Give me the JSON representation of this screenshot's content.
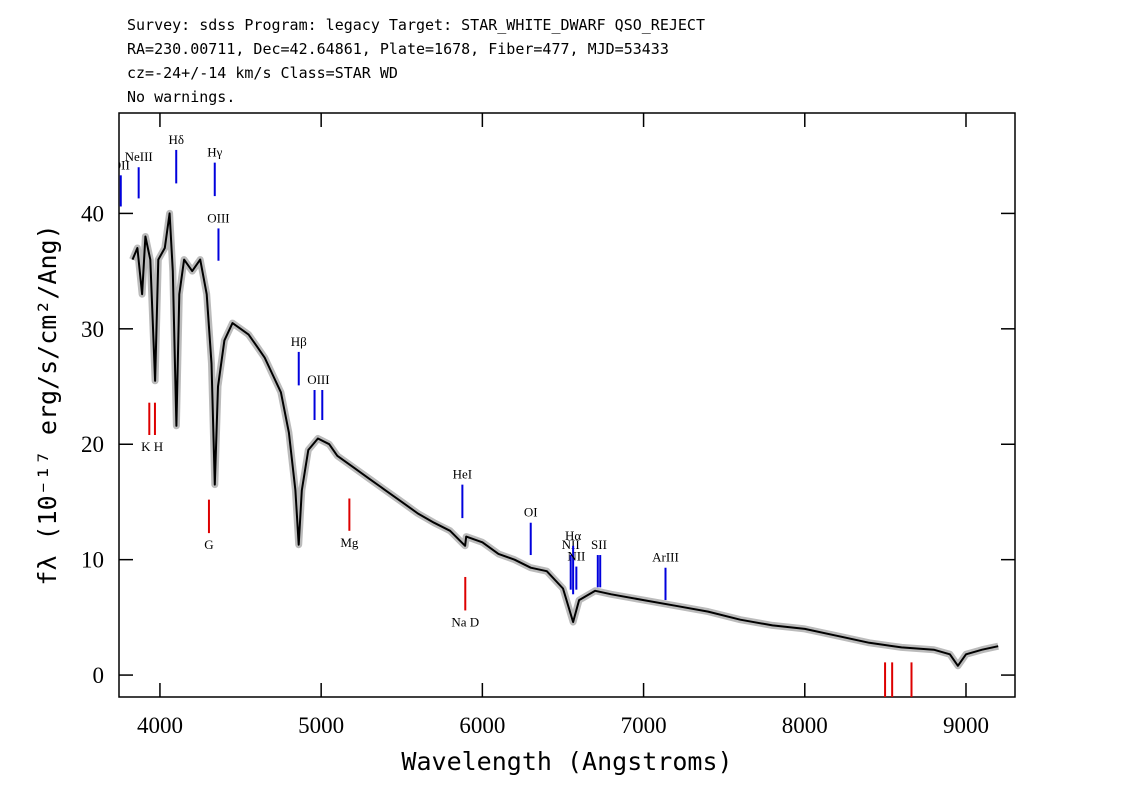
{
  "chart_data": {
    "type": "line",
    "title_lines": [
      "Survey: sdss Program: legacy Target: STAR_WHITE_DWARF QSO_REJECT",
      "RA=230.00711, Dec=42.64861, Plate=1678, Fiber=477, MJD=53433",
      "cz=-24+/-14 km/s Class=STAR WD",
      "No warnings."
    ],
    "xlabel": "Wavelength (Angstroms)",
    "ylabel": "fλ (10⁻¹⁷ erg/s/cm²/Ang)",
    "xlim": [
      3746,
      9304
    ],
    "ylim": [
      -1.9,
      48.7
    ],
    "xticks": [
      4000,
      5000,
      6000,
      7000,
      8000,
      9000
    ],
    "yticks": [
      0,
      10,
      20,
      30,
      40
    ],
    "color": "#000000",
    "error_color": "#bbbbbb",
    "x": [
      3830,
      3860,
      3889,
      3910,
      3940,
      3970,
      3990,
      4030,
      4060,
      4080,
      4102,
      4120,
      4150,
      4200,
      4250,
      4290,
      4320,
      4340,
      4360,
      4400,
      4450,
      4500,
      4550,
      4600,
      4650,
      4700,
      4750,
      4800,
      4840,
      4861,
      4880,
      4920,
      4980,
      5050,
      5100,
      5200,
      5300,
      5400,
      5500,
      5600,
      5700,
      5800,
      5893,
      5900,
      6000,
      6100,
      6200,
      6300,
      6400,
      6500,
      6563,
      6600,
      6700,
      6800,
      7000,
      7200,
      7400,
      7600,
      7800,
      8000,
      8200,
      8400,
      8600,
      8800,
      8900,
      8950,
      9000,
      9100,
      9200
    ],
    "values": [
      36,
      37,
      33,
      38,
      36,
      25.5,
      36,
      37,
      40,
      35,
      21.6,
      33,
      36,
      35,
      36,
      33,
      27,
      16.5,
      25,
      29,
      30.5,
      30,
      29.5,
      28.5,
      27.5,
      26,
      24.5,
      21,
      16,
      11.3,
      16,
      19.5,
      20.5,
      20,
      19,
      18,
      17,
      16,
      15,
      14,
      13.2,
      12.5,
      11.2,
      12,
      11.5,
      10.5,
      10,
      9.3,
      9,
      7.5,
      4.6,
      6.5,
      7.3,
      7,
      6.5,
      6,
      5.5,
      4.8,
      4.3,
      4,
      3.4,
      2.8,
      2.4,
      2.2,
      1.8,
      0.8,
      1.8,
      2.2,
      2.5
    ],
    "line_markers": [
      {
        "label": "OII",
        "wavelength": [
          3757
        ],
        "flux_range": [
          40.6,
          43.3
        ],
        "color": "#0000dd"
      },
      {
        "label": "NeIII",
        "wavelength": [
          3868
        ],
        "flux_range": [
          41.3,
          44.0
        ],
        "color": "#0000dd"
      },
      {
        "label": "Hδ",
        "wavelength": [
          4101
        ],
        "flux_range": [
          42.6,
          45.5
        ],
        "color": "#0000dd"
      },
      {
        "label": "Hγ",
        "wavelength": [
          4340
        ],
        "flux_range": [
          41.5,
          44.4
        ],
        "color": "#0000dd"
      },
      {
        "label": "OIII",
        "wavelength": [
          4363
        ],
        "flux_range": [
          35.9,
          38.7
        ],
        "color": "#0000dd"
      },
      {
        "label": "Hβ",
        "wavelength": [
          4861
        ],
        "flux_range": [
          25.1,
          28.0
        ],
        "color": "#0000dd"
      },
      {
        "label": "OIII",
        "wavelength": [
          4959,
          5007
        ],
        "flux_range": [
          22.1,
          24.7
        ],
        "color": "#0000dd"
      },
      {
        "label": "HeI",
        "wavelength": [
          5876
        ],
        "flux_range": [
          13.6,
          16.5
        ],
        "color": "#0000dd"
      },
      {
        "label": "OI",
        "wavelength": [
          6300
        ],
        "flux_range": [
          10.4,
          13.2
        ],
        "color": "#0000dd"
      },
      {
        "label": "NII",
        "wavelength": [
          6548
        ],
        "flux_range": [
          7.4,
          10.4
        ],
        "color": "#0000dd"
      },
      {
        "label": "Hα",
        "wavelength": [
          6563
        ],
        "flux_range": [
          7.0,
          11.2
        ],
        "color": "#0000dd"
      },
      {
        "label": "NII",
        "wavelength": [
          6583
        ],
        "flux_range": [
          7.4,
          9.4
        ],
        "color": "#0000dd"
      },
      {
        "label": "SII",
        "wavelength": [
          6716,
          6731
        ],
        "flux_range": [
          7.6,
          10.4
        ],
        "color": "#0000dd"
      },
      {
        "label": "ArIII",
        "wavelength": [
          7136
        ],
        "flux_range": [
          6.5,
          9.3
        ],
        "color": "#0000dd"
      },
      {
        "label": "K H",
        "wavelength": [
          3934,
          3969
        ],
        "flux_range": [
          20.8,
          23.6
        ],
        "color": "#dd0000"
      },
      {
        "label": "G",
        "wavelength": [
          4304
        ],
        "flux_range": [
          12.3,
          15.2
        ],
        "color": "#dd0000"
      },
      {
        "label": "Mg",
        "wavelength": [
          5175
        ],
        "flux_range": [
          12.5,
          15.3
        ],
        "color": "#dd0000"
      },
      {
        "label": "Na  D",
        "wavelength": [
          5894
        ],
        "flux_range": [
          5.6,
          8.5
        ],
        "color": "#dd0000"
      },
      {
        "wavelength": [
          8498,
          8542,
          8662
        ],
        "flux_range": [
          -1.9,
          1.1
        ],
        "color": "#dd0000"
      }
    ]
  }
}
